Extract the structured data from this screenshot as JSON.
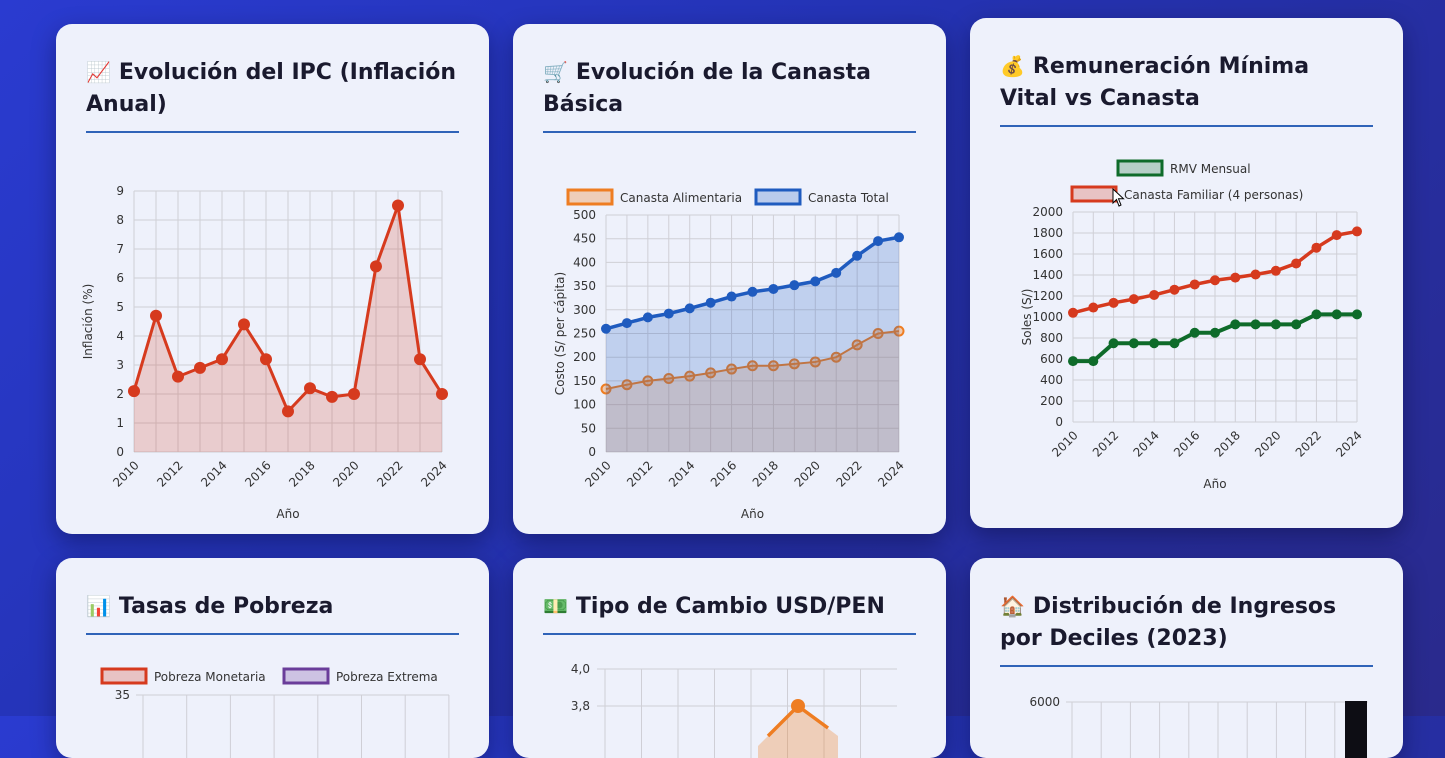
{
  "cards": [
    {
      "icon": "📈",
      "title": "Evolución del IPC (Inflación Anual)"
    },
    {
      "icon": "🛒",
      "title": "Evolución de la Canasta Básica"
    },
    {
      "icon": "💰",
      "title": "Remuneración Mínima Vital vs Canasta"
    },
    {
      "icon": "📊",
      "title": "Tasas de Pobreza"
    },
    {
      "icon": "💵",
      "title": "Tipo de Cambio USD/PEN"
    },
    {
      "icon": "🏠",
      "title": "Distribución de Ingresos por Deciles (2023)"
    }
  ],
  "chart_data": [
    {
      "type": "area",
      "xlabel": "Año",
      "ylabel": "Inflación (%)",
      "x": [
        2010,
        2011,
        2012,
        2013,
        2014,
        2015,
        2016,
        2017,
        2018,
        2019,
        2020,
        2021,
        2022,
        2023,
        2024
      ],
      "x_ticks": [
        "2010",
        "2012",
        "2014",
        "2016",
        "2018",
        "2020",
        "2022",
        "2024"
      ],
      "y_ticks": [
        "0",
        "1",
        "2",
        "3",
        "4",
        "5",
        "6",
        "7",
        "8",
        "9"
      ],
      "ylim": [
        0,
        9
      ],
      "grid": true,
      "series": [
        {
          "values": [
            2.1,
            4.7,
            2.6,
            2.9,
            3.2,
            4.4,
            3.2,
            1.4,
            2.2,
            1.9,
            2.0,
            6.4,
            8.5,
            3.2,
            2.0
          ],
          "color": "#d63a1e"
        }
      ]
    },
    {
      "type": "area",
      "xlabel": "Año",
      "ylabel": "Costo (S/ per cápita)",
      "x": [
        2010,
        2011,
        2012,
        2013,
        2014,
        2015,
        2016,
        2017,
        2018,
        2019,
        2020,
        2021,
        2022,
        2023,
        2024
      ],
      "x_ticks": [
        "2010",
        "2012",
        "2014",
        "2016",
        "2018",
        "2020",
        "2022",
        "2024"
      ],
      "y_ticks": [
        "0",
        "50",
        "100",
        "150",
        "200",
        "250",
        "300",
        "350",
        "400",
        "450",
        "500"
      ],
      "ylim": [
        0,
        500
      ],
      "grid": true,
      "legend": "top",
      "series": [
        {
          "name": "Canasta Alimentaria",
          "color": "#ee7d22",
          "values": [
            133,
            142,
            150,
            155,
            160,
            167,
            175,
            182,
            182,
            186,
            190,
            200,
            226,
            250,
            255
          ]
        },
        {
          "name": "Canasta Total",
          "color": "#1f5bbf",
          "values": [
            260,
            272,
            284,
            292,
            303,
            315,
            328,
            338,
            344,
            352,
            360,
            378,
            414,
            445,
            453
          ]
        }
      ]
    },
    {
      "type": "line",
      "xlabel": "Año",
      "ylabel": "Soles (S/)",
      "x": [
        2010,
        2011,
        2012,
        2013,
        2014,
        2015,
        2016,
        2017,
        2018,
        2019,
        2020,
        2021,
        2022,
        2023,
        2024
      ],
      "x_ticks": [
        "2010",
        "2012",
        "2014",
        "2016",
        "2018",
        "2020",
        "2022",
        "2024"
      ],
      "y_ticks": [
        "0",
        "200",
        "400",
        "600",
        "800",
        "1000",
        "1200",
        "1400",
        "1600",
        "1800",
        "2000"
      ],
      "ylim": [
        0,
        2000
      ],
      "grid": true,
      "legend": "top",
      "series": [
        {
          "name": "RMV Mensual",
          "color": "#0e6b2a",
          "values": [
            580,
            580,
            750,
            750,
            750,
            750,
            850,
            850,
            930,
            930,
            930,
            930,
            1025,
            1025,
            1025
          ]
        },
        {
          "name": "Canasta Familiar (4 personas)",
          "color": "#d63a1e",
          "values": [
            1040,
            1090,
            1135,
            1170,
            1210,
            1260,
            1310,
            1350,
            1375,
            1405,
            1440,
            1510,
            1660,
            1780,
            1815
          ]
        }
      ]
    },
    {
      "type": "line",
      "y_ticks": [
        "35"
      ],
      "legend": "top",
      "series": [
        {
          "name": "Pobreza Monetaria",
          "color": "#d63a1e"
        },
        {
          "name": "Pobreza Extrema",
          "color": "#6a3d9a"
        }
      ]
    },
    {
      "type": "line",
      "y_ticks": [
        "4,0",
        "3,8"
      ],
      "series": [
        {
          "color": "#ee7d22",
          "peak_value": 3.8
        }
      ]
    },
    {
      "type": "bar",
      "y_ticks": [
        "6000"
      ]
    }
  ]
}
